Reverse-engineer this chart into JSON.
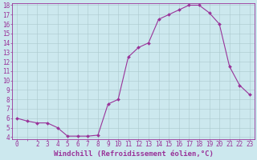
{
  "x": [
    0,
    1,
    2,
    3,
    4,
    5,
    6,
    7,
    8,
    9,
    10,
    11,
    12,
    13,
    14,
    15,
    16,
    17,
    18,
    19,
    20,
    21,
    22,
    23
  ],
  "y": [
    6.0,
    5.7,
    5.5,
    5.5,
    5.0,
    4.1,
    4.1,
    4.1,
    4.2,
    7.5,
    8.0,
    12.5,
    13.5,
    14.0,
    16.5,
    17.0,
    17.5,
    18.0,
    18.0,
    17.2,
    16.0,
    11.5,
    9.5,
    8.5
  ],
  "line_color": "#993399",
  "marker": "D",
  "marker_size": 2.0,
  "bg_color": "#cce8ee",
  "grid_color": "#aac8cc",
  "xlabel": "Windchill (Refroidissement éolien,°C)",
  "xlabel_color": "#993399",
  "ylim": [
    4,
    18
  ],
  "xlim": [
    -0.5,
    23.5
  ],
  "yticks": [
    4,
    5,
    6,
    7,
    8,
    9,
    10,
    11,
    12,
    13,
    14,
    15,
    16,
    17,
    18
  ],
  "xticks": [
    0,
    2,
    3,
    4,
    5,
    6,
    7,
    8,
    9,
    10,
    11,
    12,
    13,
    14,
    15,
    16,
    17,
    18,
    19,
    20,
    21,
    22,
    23
  ],
  "tick_color": "#993399",
  "tick_fontsize": 5.5,
  "xlabel_fontsize": 6.5
}
